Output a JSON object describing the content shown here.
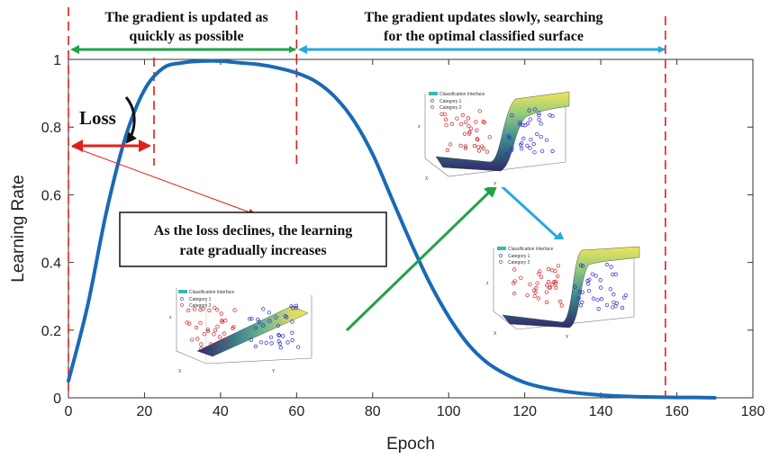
{
  "chart_data": {
    "type": "line",
    "xlabel": "Epoch",
    "ylabel": "Learning Rate",
    "xlim": [
      0,
      180
    ],
    "ylim": [
      0,
      1
    ],
    "xticks": [
      "0",
      "20",
      "40",
      "60",
      "80",
      "100",
      "120",
      "140",
      "160",
      "180"
    ],
    "yticks": [
      "0",
      "0.2",
      "0.4",
      "0.6",
      "0.8",
      "1"
    ],
    "grid": false,
    "series": [
      {
        "color": "#1a6ab5",
        "x": [
          0,
          5,
          10,
          15,
          20,
          25,
          30,
          35,
          40,
          45,
          50,
          55,
          60,
          65,
          70,
          75,
          80,
          85,
          90,
          95,
          100,
          105,
          110,
          115,
          120,
          125,
          130,
          135,
          140,
          145,
          150,
          155,
          160,
          165,
          170
        ],
        "y": [
          0.05,
          0.27,
          0.55,
          0.77,
          0.91,
          0.975,
          0.99,
          0.995,
          0.995,
          0.99,
          0.985,
          0.975,
          0.96,
          0.935,
          0.89,
          0.82,
          0.72,
          0.59,
          0.46,
          0.34,
          0.24,
          0.16,
          0.105,
          0.07,
          0.045,
          0.03,
          0.02,
          0.013,
          0.008,
          0.005,
          0.003,
          0.002,
          0.001,
          0.001,
          0.0
        ]
      }
    ],
    "dashed_lines_x": [
      0,
      22.5,
      60,
      157
    ],
    "annotations": {
      "phase1": [
        "The gradient is updated as",
        "quickly as possible"
      ],
      "phase2": [
        "The gradient updates slowly, searching",
        "for the optimal classified surface"
      ],
      "loss": "Loss",
      "box": [
        "As the loss declines, the learning",
        "rate gradually increases"
      ]
    }
  },
  "insets": {
    "legend_title": "Classification Interface",
    "legend_cat1": "Category 1",
    "legend_cat2": "Category 2",
    "axis_x": "X",
    "axis_y": "Y",
    "axis_z": "z",
    "x_ticks": [
      "-1.5",
      "-1",
      "-0.5",
      "0",
      "0.5",
      "1",
      "1.5"
    ]
  },
  "colors": {
    "curve": "#1a6ab5",
    "dashed": "#e0201b",
    "green_arrow": "#1fa34a",
    "blue_arrow": "#29a8e0",
    "red_arrow": "#e0201b",
    "category1": "#2a2ad0",
    "category2": "#d02020"
  }
}
